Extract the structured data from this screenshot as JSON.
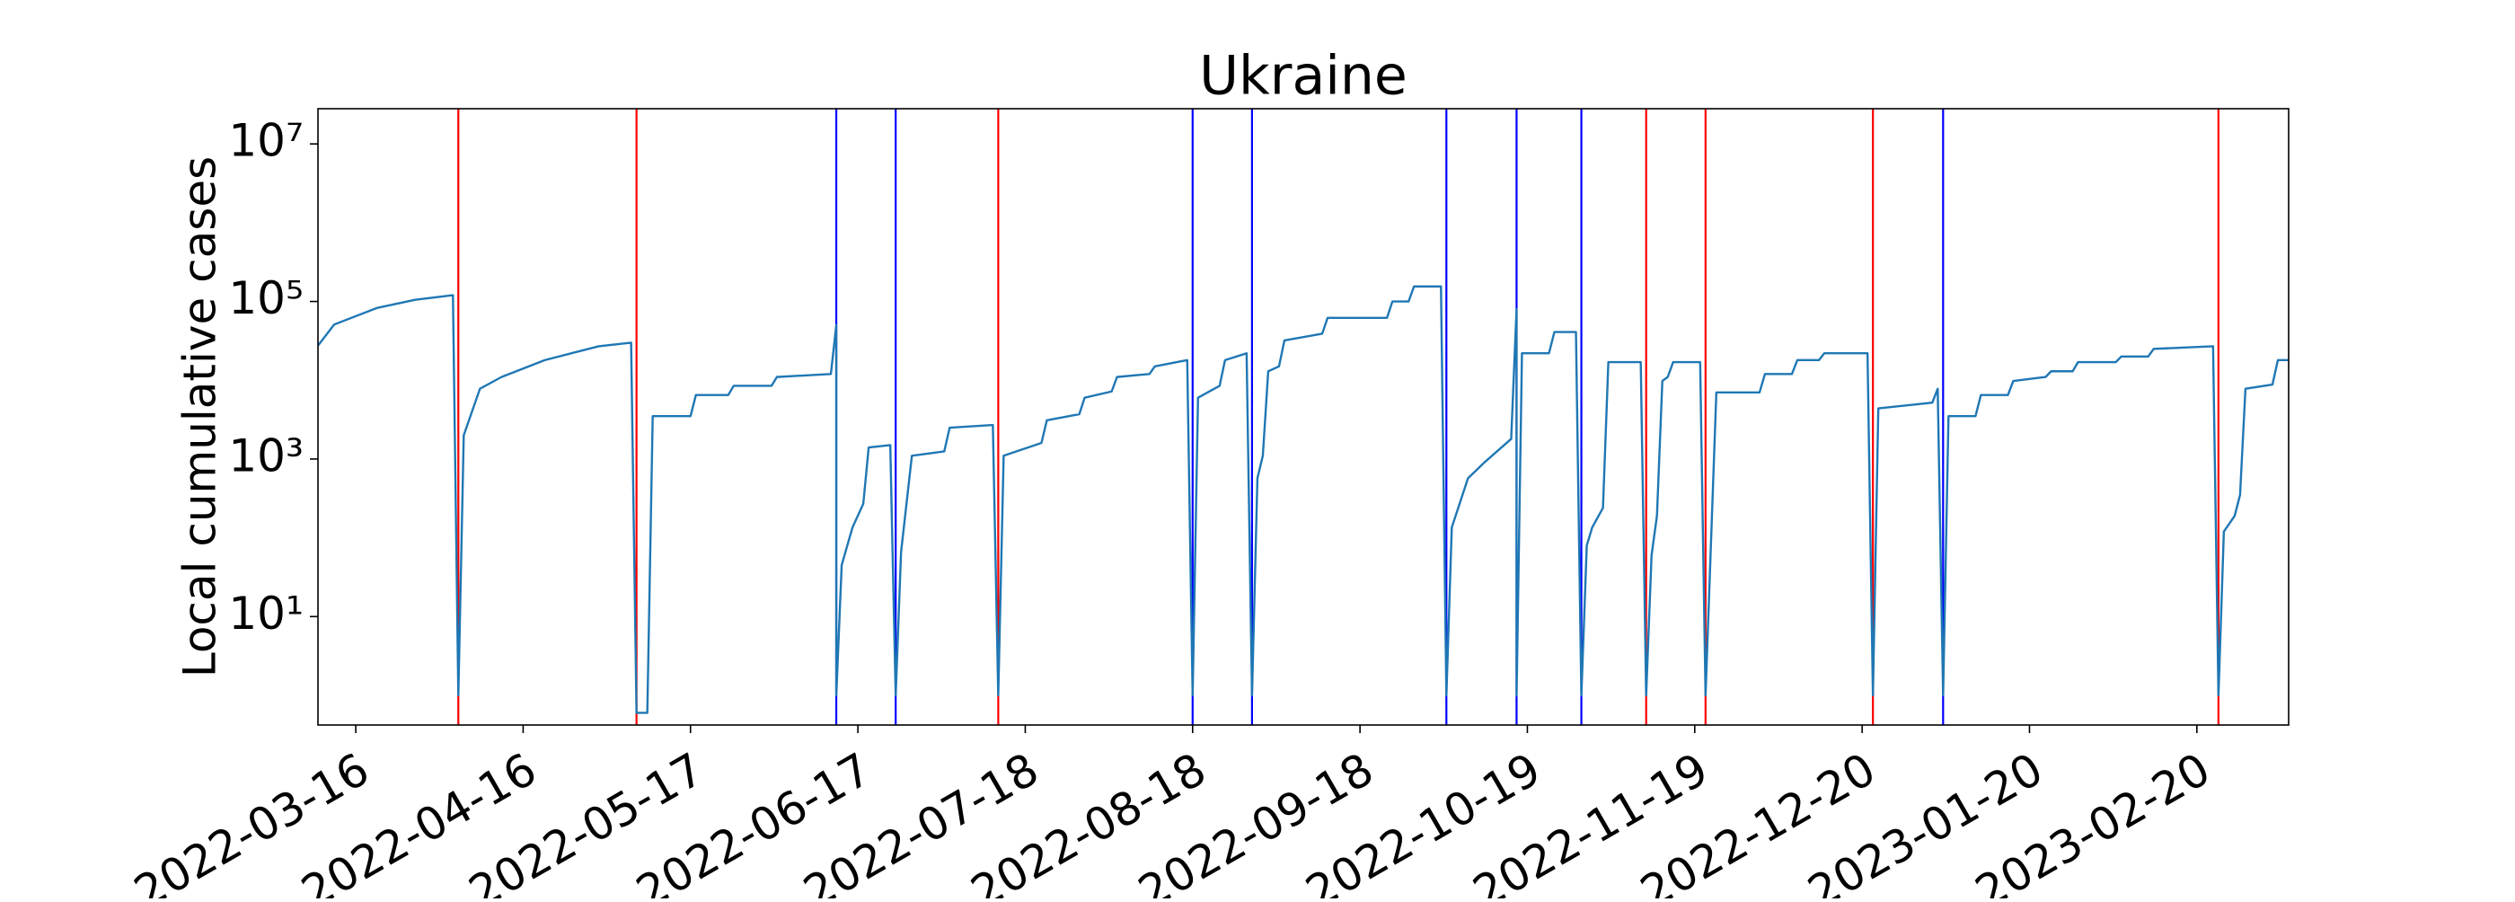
{
  "chart_data": {
    "type": "line",
    "title": "Ukraine",
    "y_label": "Local cumulative cases",
    "color": "#1f77b4",
    "log_y": true,
    "xlim": [
      "2022-03-09",
      "2023-03-09"
    ],
    "ylim": [
      0.42,
      28000000
    ],
    "xticks": [
      "2022-03-16",
      "2022-04-16",
      "2022-05-17",
      "2022-06-17",
      "2022-07-18",
      "2022-08-18",
      "2022-09-18",
      "2022-10-19",
      "2022-11-19",
      "2022-12-20",
      "2023-01-20",
      "2023-02-20"
    ],
    "yticks": [
      {
        "value": 10,
        "label": "10¹"
      },
      {
        "value": 1000,
        "label": "10³"
      },
      {
        "value": 100000,
        "label": "10⁵"
      },
      {
        "value": 10000000,
        "label": "10⁷"
      }
    ],
    "x": [
      "2022-03-09",
      "2022-03-12",
      "2022-03-20",
      "2022-03-27",
      "2022-04-03",
      "2022-04-04",
      "2022-04-05",
      "2022-04-08",
      "2022-04-12",
      "2022-04-20",
      "2022-04-30",
      "2022-05-06",
      "2022-05-07",
      "2022-05-09",
      "2022-05-10",
      "2022-05-17",
      "2022-05-18",
      "2022-05-24",
      "2022-05-25",
      "2022-06-01",
      "2022-06-02",
      "2022-06-12",
      "2022-06-13",
      "2022-06-13",
      "2022-06-14",
      "2022-06-16",
      "2022-06-18",
      "2022-06-19",
      "2022-06-23",
      "2022-06-24",
      "2022-06-25",
      "2022-06-27",
      "2022-07-03",
      "2022-07-04",
      "2022-07-12",
      "2022-07-13",
      "2022-07-14",
      "2022-07-21",
      "2022-07-22",
      "2022-07-28",
      "2022-07-29",
      "2022-08-03",
      "2022-08-04",
      "2022-08-10",
      "2022-08-11",
      "2022-08-17",
      "2022-08-18",
      "2022-08-19",
      "2022-08-23",
      "2022-08-24",
      "2022-08-28",
      "2022-08-29",
      "2022-08-30",
      "2022-08-31",
      "2022-09-01",
      "2022-09-03",
      "2022-09-04",
      "2022-09-11",
      "2022-09-12",
      "2022-09-23",
      "2022-09-24",
      "2022-09-27",
      "2022-09-28",
      "2022-10-03",
      "2022-10-04",
      "2022-10-05",
      "2022-10-08",
      "2022-10-11",
      "2022-10-16",
      "2022-10-17",
      "2022-10-17",
      "2022-10-18",
      "2022-10-23",
      "2022-10-24",
      "2022-10-28",
      "2022-10-29",
      "2022-10-30",
      "2022-10-31",
      "2022-11-02",
      "2022-11-03",
      "2022-11-09",
      "2022-11-10",
      "2022-11-11",
      "2022-11-12",
      "2022-11-13",
      "2022-11-14",
      "2022-11-15",
      "2022-11-20",
      "2022-11-21",
      "2022-11-23",
      "2022-12-01",
      "2022-12-02",
      "2022-12-07",
      "2022-12-08",
      "2022-12-12",
      "2022-12-13",
      "2022-12-21",
      "2022-12-22",
      "2022-12-23",
      "2023-01-02",
      "2023-01-03",
      "2023-01-04",
      "2023-01-05",
      "2023-01-10",
      "2023-01-11",
      "2023-01-16",
      "2023-01-17",
      "2023-01-23",
      "2023-01-24",
      "2023-01-28",
      "2023-01-29",
      "2023-02-05",
      "2023-02-06",
      "2023-02-11",
      "2023-02-12",
      "2023-02-23",
      "2023-02-24",
      "2023-02-25",
      "2023-02-27",
      "2023-02-28",
      "2023-03-01",
      "2023-03-06",
      "2023-03-07",
      "2023-03-09"
    ],
    "values": [
      27500,
      51000,
      83000,
      105000,
      120000,
      1,
      2000,
      7800,
      11000,
      18000,
      27000,
      30000,
      0.6,
      0.6,
      3500,
      3500,
      6500,
      6500,
      8500,
      8500,
      11000,
      12000,
      50000,
      1,
      45,
      135,
      270,
      1400,
      1500,
      1,
      66,
      1100,
      1250,
      2500,
      2700,
      1,
      1100,
      1600,
      3100,
      3700,
      6000,
      7200,
      11000,
      12000,
      15000,
      18000,
      1,
      6000,
      8500,
      18000,
      22000,
      1,
      570,
      1100,
      13000,
      15000,
      32000,
      39000,
      62000,
      62000,
      100000,
      100000,
      155000,
      155000,
      1,
      135,
      570,
      900,
      1800,
      80000,
      1,
      22000,
      22000,
      41000,
      41000,
      1,
      80,
      135,
      240,
      17000,
      17000,
      1,
      60,
      190,
      9800,
      11000,
      17000,
      17000,
      1,
      7000,
      7000,
      12000,
      12000,
      18000,
      18000,
      22000,
      22000,
      1,
      4400,
      5200,
      7800,
      1,
      3500,
      3500,
      6500,
      6500,
      9800,
      11000,
      13000,
      13000,
      17000,
      17000,
      20000,
      20000,
      25000,
      27000,
      1,
      120,
      190,
      350,
      7800,
      8800,
      18000,
      18000
    ],
    "vlines": [
      {
        "x": "2022-04-04",
        "color": "#ff0000"
      },
      {
        "x": "2022-05-07",
        "color": "#ff0000"
      },
      {
        "x": "2022-06-13",
        "color": "#0000ff"
      },
      {
        "x": "2022-06-24",
        "color": "#0000ff"
      },
      {
        "x": "2022-07-13",
        "color": "#ff0000"
      },
      {
        "x": "2022-08-18",
        "color": "#0000ff"
      },
      {
        "x": "2022-08-29",
        "color": "#0000ff"
      },
      {
        "x": "2022-10-04",
        "color": "#0000ff"
      },
      {
        "x": "2022-10-17",
        "color": "#0000ff"
      },
      {
        "x": "2022-10-29",
        "color": "#0000ff"
      },
      {
        "x": "2022-11-10",
        "color": "#ff0000"
      },
      {
        "x": "2022-11-21",
        "color": "#ff0000"
      },
      {
        "x": "2022-12-22",
        "color": "#ff0000"
      },
      {
        "x": "2023-01-04",
        "color": "#0000ff"
      },
      {
        "x": "2023-02-24",
        "color": "#ff0000"
      }
    ]
  }
}
